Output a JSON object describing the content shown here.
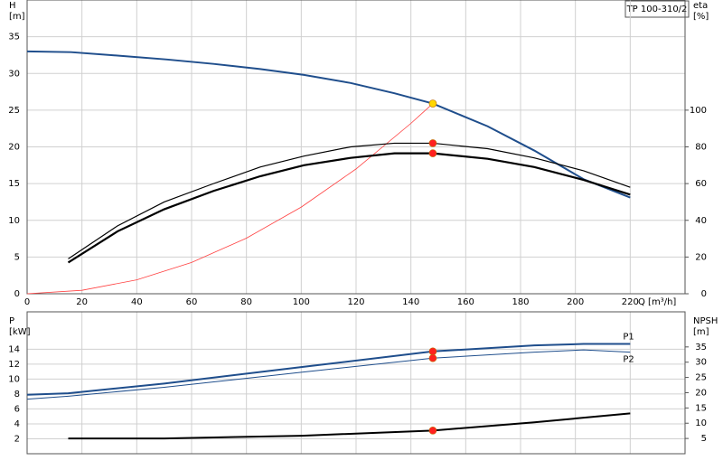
{
  "chart_data": [
    {
      "type": "line",
      "title": "TP 100-310/2",
      "y_label": "H",
      "y_unit": "[m]",
      "y2_label": "eta",
      "y2_unit": "[%]",
      "x_label": "Q [m³/h]",
      "xlim": [
        0,
        240
      ],
      "xticks": [
        0,
        20,
        40,
        60,
        80,
        100,
        120,
        140,
        160,
        180,
        200,
        220
      ],
      "ylim": [
        0,
        40
      ],
      "yticks": [
        0,
        5,
        10,
        15,
        20,
        25,
        30,
        35
      ],
      "y2lim": [
        0,
        160
      ],
      "y2ticks": [
        0,
        20,
        40,
        60,
        80,
        100
      ],
      "grid": true,
      "series": [
        {
          "kind": "line",
          "color": "#ff4040",
          "width": 0.8,
          "x": [
            0,
            20,
            40,
            60,
            80,
            100,
            120,
            140,
            148
          ],
          "values": [
            0,
            0.47,
            1.89,
            4.26,
            7.57,
            11.8,
            17.0,
            23.2,
            25.9
          ]
        },
        {
          "kind": "line",
          "color": "#1f4e8c",
          "width": 2,
          "x": [
            0,
            16,
            34,
            51,
            68,
            85,
            101,
            118,
            134,
            148,
            168,
            185,
            203,
            220
          ],
          "values": [
            33,
            32.9,
            32.4,
            31.9,
            31.3,
            30.6,
            29.8,
            28.7,
            27.3,
            25.9,
            22.8,
            19.5,
            15.6,
            13.1
          ]
        },
        {
          "kind": "line",
          "color": "#000000",
          "width": 1.2,
          "axis": "y2",
          "x": [
            15,
            33,
            50,
            68,
            85,
            101,
            118,
            134,
            148,
            168,
            185,
            203,
            220
          ],
          "values": [
            19,
            37,
            50,
            60,
            69,
            75,
            80,
            82,
            82,
            79,
            74,
            67,
            58
          ]
        },
        {
          "kind": "line",
          "color": "#000000",
          "width": 2.2,
          "axis": "y2",
          "x": [
            15,
            33,
            50,
            68,
            85,
            101,
            118,
            134,
            148,
            168,
            185,
            203,
            220
          ],
          "values": [
            17,
            34,
            46,
            56,
            64,
            70,
            74,
            76.5,
            76.5,
            73.5,
            69,
            62,
            54
          ]
        },
        {
          "kind": "marker",
          "color": "#ffd700",
          "x": [
            148
          ],
          "values": [
            25.9
          ]
        },
        {
          "kind": "marker",
          "color": "#ff2020",
          "axis": "y2",
          "x": [
            148
          ],
          "values": [
            82
          ]
        },
        {
          "kind": "marker",
          "color": "#ff2020",
          "axis": "y2",
          "x": [
            148
          ],
          "values": [
            76.5
          ]
        }
      ]
    },
    {
      "type": "line",
      "y_label": "P",
      "y_unit": "[kW]",
      "y2_label": "NPSH",
      "y2_unit": "[m]",
      "xlim": [
        0,
        240
      ],
      "ylim": [
        0,
        19
      ],
      "yticks": [
        2,
        4,
        6,
        8,
        10,
        12,
        14
      ],
      "y2lim": [
        0,
        46.5
      ],
      "y2ticks": [
        5,
        10,
        15,
        20,
        25,
        30,
        35
      ],
      "grid": true,
      "series": [
        {
          "kind": "line",
          "name": "P1",
          "color": "#1f4e8c",
          "width": 2,
          "x": [
            0,
            15,
            50,
            100,
            148,
            185,
            203,
            220
          ],
          "values": [
            7.9,
            8.1,
            9.4,
            11.6,
            13.7,
            14.5,
            14.7,
            14.7
          ]
        },
        {
          "kind": "line",
          "name": "P2",
          "color": "#1f4e8c",
          "width": 1,
          "x": [
            0,
            15,
            50,
            100,
            148,
            185,
            203,
            220
          ],
          "values": [
            7.3,
            7.7,
            8.9,
            10.9,
            12.8,
            13.6,
            13.9,
            13.6
          ]
        },
        {
          "kind": "line",
          "color": "#000000",
          "width": 2,
          "axis": "y2",
          "x": [
            15,
            50,
            100,
            148,
            185,
            220
          ],
          "values": [
            5,
            5,
            5.9,
            7.6,
            10.3,
            13.2
          ]
        },
        {
          "kind": "marker",
          "color": "#ff2020",
          "x": [
            148
          ],
          "values": [
            13.7
          ]
        },
        {
          "kind": "marker",
          "color": "#ff2020",
          "x": [
            148
          ],
          "values": [
            12.8
          ]
        },
        {
          "kind": "marker",
          "color": "#ff2020",
          "axis": "y2",
          "x": [
            148
          ],
          "values": [
            7.6
          ]
        }
      ]
    }
  ]
}
